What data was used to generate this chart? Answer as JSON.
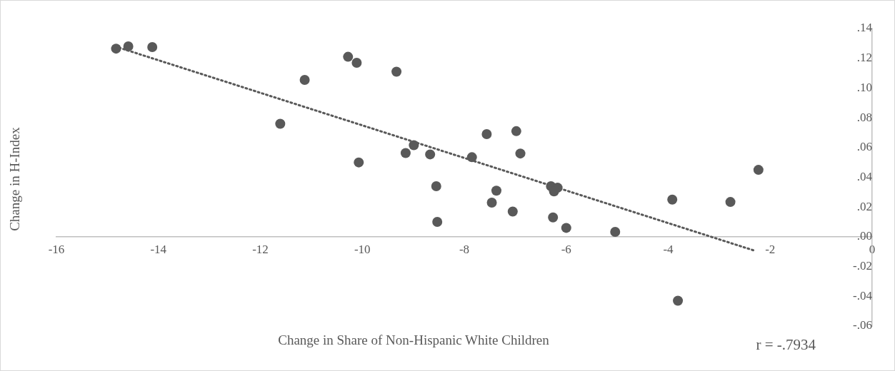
{
  "chart_data": {
    "type": "scatter",
    "xlabel": "Change in Share of Non-Hispanic White Children",
    "ylabel": "Change in H-Index",
    "annotations": [
      "r = -.7934"
    ],
    "xlim": [
      -16,
      0
    ],
    "xticks": [
      -16,
      -14,
      -12,
      -10,
      -8,
      -6,
      -4,
      -2,
      0
    ],
    "ylim": [
      -0.06,
      0.14
    ],
    "yticks": [
      {
        "value": -0.06,
        "label": "-.06"
      },
      {
        "value": -0.04,
        "label": "-.04"
      },
      {
        "value": -0.02,
        "label": "-.02"
      },
      {
        "value": 0,
        "label": ".00"
      },
      {
        "value": 0.02,
        "label": ".02"
      },
      {
        "value": 0.04,
        "label": ".04"
      },
      {
        "value": 0.06,
        "label": ".06"
      },
      {
        "value": 0.08,
        "label": ".08"
      },
      {
        "value": 0.1,
        "label": ".10"
      },
      {
        "value": 0.12,
        "label": ".12"
      },
      {
        "value": 0.14,
        "label": ".14"
      }
    ],
    "grid": false,
    "series": [
      {
        "marker": "circle",
        "color": "#595959",
        "x": [
          -14.83,
          -14.59,
          -14.12,
          -10.28,
          -10.11,
          -9.33,
          -11.13,
          -11.61,
          -10.07,
          -8.99,
          -9.15,
          -8.67,
          -7.85,
          -8.55,
          -8.53,
          -7.56,
          -6.98,
          -6.9,
          -7.37,
          -7.46,
          -7.05,
          -6.3,
          -6.17,
          -6.24,
          -6.26,
          -6.0,
          -5.04,
          -3.92,
          -2.78,
          -2.23,
          -3.81
        ],
        "values": [
          0.1265,
          0.128,
          0.1275,
          0.121,
          0.117,
          0.111,
          0.1055,
          0.076,
          0.05,
          0.0616,
          0.0563,
          0.0554,
          0.0535,
          0.034,
          0.01,
          0.069,
          0.071,
          0.056,
          0.031,
          0.023,
          0.017,
          0.034,
          0.033,
          0.0305,
          0.013,
          0.006,
          0.0033,
          0.025,
          0.0234,
          0.045,
          -0.043
        ]
      },
      {
        "type": "line",
        "marker": "none",
        "color": "#595959",
        "line_style": "dotted",
        "x": [
          -14.85,
          -2.29
        ],
        "values": [
          0.128,
          -0.0095
        ]
      }
    ]
  }
}
